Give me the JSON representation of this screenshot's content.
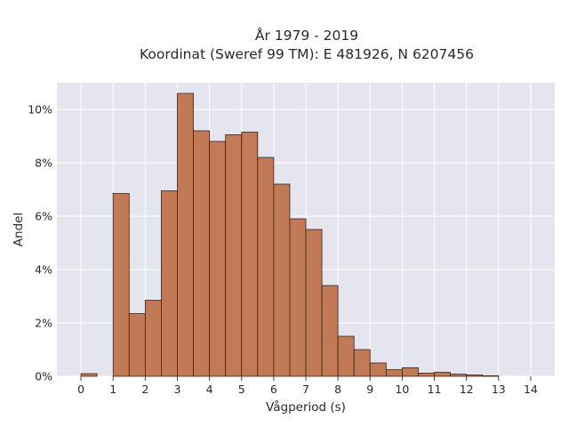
{
  "chart_data": {
    "type": "bar",
    "title_line1": "År 1979 - 2019",
    "title_line2": "Koordinat (Sweref 99 TM): E 481926, N 6207456",
    "xlabel": "Vågperiod (s)",
    "ylabel": "Andel",
    "xlim": [
      -0.75,
      14.75
    ],
    "ylim": [
      0,
      11.0
    ],
    "x_ticks": [
      0,
      1,
      2,
      3,
      4,
      5,
      6,
      7,
      8,
      9,
      10,
      11,
      12,
      13,
      14
    ],
    "y_ticks": [
      0,
      2,
      4,
      6,
      8,
      10
    ],
    "y_tick_labels": [
      "0%",
      "2%",
      "4%",
      "6%",
      "8%",
      "10%"
    ],
    "bin_width": 0.5,
    "bin_starts": [
      0,
      0.5,
      1,
      1.5,
      2,
      2.5,
      3,
      3.5,
      4,
      4.5,
      5,
      5.5,
      6,
      6.5,
      7,
      7.5,
      8,
      8.5,
      9,
      9.5,
      10,
      10.5,
      11,
      11.5,
      12,
      12.5,
      13,
      13.5
    ],
    "values": [
      0.1,
      0,
      6.85,
      2.35,
      2.85,
      6.95,
      10.6,
      9.2,
      8.8,
      9.05,
      9.15,
      8.2,
      7.2,
      5.9,
      5.5,
      3.4,
      1.5,
      1.0,
      0.5,
      0.25,
      0.32,
      0.12,
      0.15,
      0.08,
      0.05,
      0.02,
      0,
      0
    ],
    "bar_color": "#c17a55",
    "bar_edge_color": "#3a2418",
    "plot_background": "#e5e5ef",
    "grid": true,
    "grid_color": "#ffffff"
  }
}
